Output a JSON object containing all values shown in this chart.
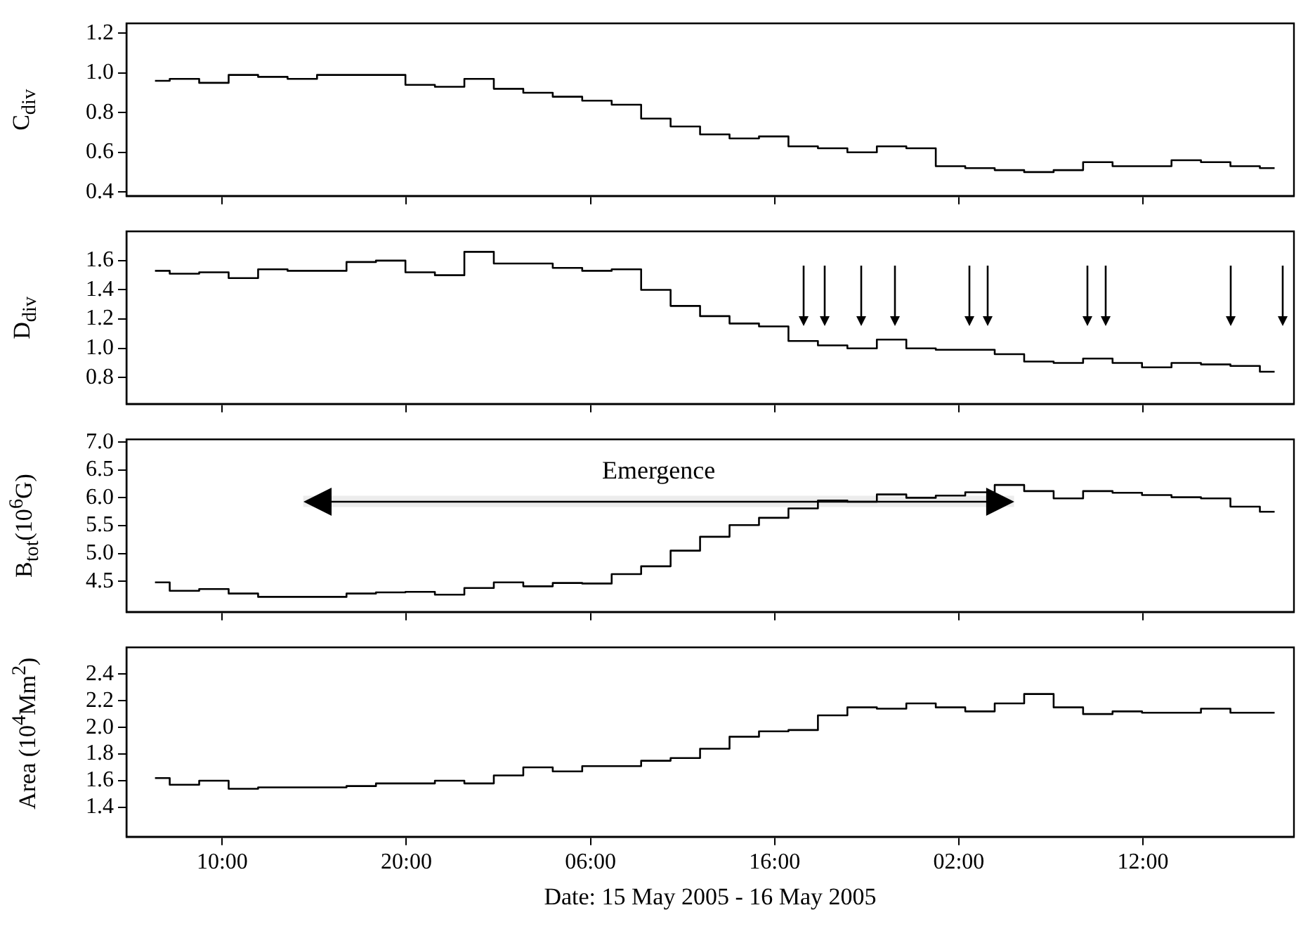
{
  "chart_data": [
    {
      "type": "step",
      "ylabel": "C$_{div}$",
      "x": [
        "2005-05-15T06:21",
        "2005-05-15T07:57",
        "2005-05-15T09:33",
        "2005-05-15T11:09",
        "2005-05-15T12:45",
        "2005-05-15T14:21",
        "2005-05-15T15:57",
        "2005-05-15T17:33",
        "2005-05-15T19:09",
        "2005-05-15T20:45",
        "2005-05-15T22:21",
        "2005-05-15T23:57",
        "2005-05-16T01:33",
        "2005-05-16T03:09",
        "2005-05-16T04:45",
        "2005-05-16T06:21",
        "2005-05-16T07:57",
        "2005-05-16T09:33",
        "2005-05-16T11:09",
        "2005-05-16T12:45",
        "2005-05-16T14:21",
        "2005-05-16T15:57",
        "2005-05-16T17:33",
        "2005-05-16T19:09",
        "2005-05-16T20:45",
        "2005-05-16T22:21",
        "2005-05-16T23:57",
        "2005-05-17T01:33",
        "2005-05-17T03:09",
        "2005-05-17T04:45",
        "2005-05-17T06:21",
        "2005-05-17T07:57",
        "2005-05-17T09:33",
        "2005-05-17T11:09",
        "2005-05-17T12:45",
        "2005-05-17T14:21",
        "2005-05-17T15:57",
        "2005-05-17T17:33",
        "2005-05-17T19:09"
      ],
      "values": [
        0.96,
        0.97,
        0.95,
        0.99,
        0.98,
        0.97,
        0.99,
        0.99,
        0.99,
        0.94,
        0.93,
        0.97,
        0.92,
        0.9,
        0.88,
        0.86,
        0.84,
        0.77,
        0.73,
        0.69,
        0.67,
        0.68,
        0.63,
        0.62,
        0.6,
        0.63,
        0.62,
        0.53,
        0.52,
        0.51,
        0.5,
        0.51,
        0.55,
        0.53,
        0.53,
        0.56,
        0.55,
        0.53,
        0.52
      ],
      "color": "#000000",
      "xlim": [
        "2005-05-15T04:48",
        "2005-05-17T20:12"
      ],
      "ylim": [
        0.38,
        1.25
      ],
      "xticks": [
        {
          "value": "2005-05-15T10:00",
          "label": null
        },
        {
          "value": "2005-05-15T20:00",
          "label": null
        },
        {
          "value": "2005-05-16T06:00",
          "label": null
        },
        {
          "value": "2005-05-16T16:00",
          "label": null
        },
        {
          "value": "2005-05-17T02:00",
          "label": null
        },
        {
          "value": "2005-05-17T12:00",
          "label": null
        }
      ],
      "yticks": [
        {
          "value": 0.4,
          "label": "0.4"
        },
        {
          "value": 0.6,
          "label": "0.6"
        },
        {
          "value": 0.8,
          "label": "0.8"
        },
        {
          "value": 1.0,
          "label": "1.0"
        },
        {
          "value": 1.2,
          "label": "1.2"
        }
      ],
      "tick_labels": "y",
      "marker": "none",
      "line_style": "solid"
    },
    {
      "type": "step",
      "ylabel": "D$_{div}$",
      "x": [
        "2005-05-15T06:21",
        "2005-05-15T07:57",
        "2005-05-15T09:33",
        "2005-05-15T11:09",
        "2005-05-15T12:45",
        "2005-05-15T14:21",
        "2005-05-15T15:57",
        "2005-05-15T17:33",
        "2005-05-15T19:09",
        "2005-05-15T20:45",
        "2005-05-15T22:21",
        "2005-05-15T23:57",
        "2005-05-16T01:33",
        "2005-05-16T03:09",
        "2005-05-16T04:45",
        "2005-05-16T06:21",
        "2005-05-16T07:57",
        "2005-05-16T09:33",
        "2005-05-16T11:09",
        "2005-05-16T12:45",
        "2005-05-16T14:21",
        "2005-05-16T15:57",
        "2005-05-16T17:33",
        "2005-05-16T19:09",
        "2005-05-16T20:45",
        "2005-05-16T22:21",
        "2005-05-16T23:57",
        "2005-05-17T01:33",
        "2005-05-17T03:09",
        "2005-05-17T04:45",
        "2005-05-17T06:21",
        "2005-05-17T07:57",
        "2005-05-17T09:33",
        "2005-05-17T11:09",
        "2005-05-17T12:45",
        "2005-05-17T14:21",
        "2005-05-17T15:57",
        "2005-05-17T17:33",
        "2005-05-17T19:09"
      ],
      "values": [
        1.53,
        1.51,
        1.52,
        1.48,
        1.54,
        1.53,
        1.53,
        1.59,
        1.6,
        1.52,
        1.5,
        1.66,
        1.58,
        1.58,
        1.55,
        1.53,
        1.54,
        1.4,
        1.29,
        1.22,
        1.17,
        1.15,
        1.05,
        1.02,
        1.0,
        1.06,
        1.0,
        0.99,
        0.99,
        0.96,
        0.91,
        0.9,
        0.93,
        0.9,
        0.87,
        0.9,
        0.89,
        0.88,
        0.84
      ],
      "color": "#000000",
      "xlim": [
        "2005-05-15T04:48",
        "2005-05-17T20:12"
      ],
      "ylim": [
        0.62,
        1.8
      ],
      "xticks": [
        {
          "value": "2005-05-15T10:00",
          "label": null
        },
        {
          "value": "2005-05-15T20:00",
          "label": null
        },
        {
          "value": "2005-05-16T06:00",
          "label": null
        },
        {
          "value": "2005-05-16T16:00",
          "label": null
        },
        {
          "value": "2005-05-17T02:00",
          "label": null
        },
        {
          "value": "2005-05-17T12:00",
          "label": null
        }
      ],
      "yticks": [
        {
          "value": 0.8,
          "label": "0.8"
        },
        {
          "value": 1.0,
          "label": "1.0"
        },
        {
          "value": 1.2,
          "label": "1.2"
        },
        {
          "value": 1.4,
          "label": "1.4"
        },
        {
          "value": 1.6,
          "label": "1.6"
        }
      ],
      "ref_lines": [
        {
          "axis": "x",
          "value": "2005-05-16T17:36"
        },
        {
          "axis": "x",
          "value": "2005-05-16T18:42"
        },
        {
          "axis": "x",
          "value": "2005-05-16T20:42"
        },
        {
          "axis": "x",
          "value": "2005-05-16T22:30"
        },
        {
          "axis": "x",
          "value": "2005-05-17T02:36"
        },
        {
          "axis": "x",
          "value": "2005-05-17T03:36"
        },
        {
          "axis": "x",
          "value": "2005-05-17T09:00"
        },
        {
          "axis": "x",
          "value": "2005-05-17T10:00"
        },
        {
          "axis": "x",
          "value": "2005-05-17T16:48"
        },
        {
          "axis": "x",
          "value": "2005-05-17T19:36"
        }
      ],
      "tick_labels": "y",
      "marker": "none",
      "line_style": "solid"
    },
    {
      "type": "step",
      "ylabel": "B$_{tot}$(10$^{6}$G)",
      "x": [
        "2005-05-15T06:21",
        "2005-05-15T07:57",
        "2005-05-15T09:33",
        "2005-05-15T11:09",
        "2005-05-15T12:45",
        "2005-05-15T14:21",
        "2005-05-15T15:57",
        "2005-05-15T17:33",
        "2005-05-15T19:09",
        "2005-05-15T20:45",
        "2005-05-15T22:21",
        "2005-05-15T23:57",
        "2005-05-16T01:33",
        "2005-05-16T03:09",
        "2005-05-16T04:45",
        "2005-05-16T06:21",
        "2005-05-16T07:57",
        "2005-05-16T09:33",
        "2005-05-16T11:09",
        "2005-05-16T12:45",
        "2005-05-16T14:21",
        "2005-05-16T15:57",
        "2005-05-16T17:33",
        "2005-05-16T19:09",
        "2005-05-16T20:45",
        "2005-05-16T22:21",
        "2005-05-16T23:57",
        "2005-05-17T01:33",
        "2005-05-17T03:09",
        "2005-05-17T04:45",
        "2005-05-17T06:21",
        "2005-05-17T07:57",
        "2005-05-17T09:33",
        "2005-05-17T11:09",
        "2005-05-17T12:45",
        "2005-05-17T14:21",
        "2005-05-17T15:57",
        "2005-05-17T17:33",
        "2005-05-17T19:09"
      ],
      "values": [
        4.48,
        4.33,
        4.36,
        4.28,
        4.22,
        4.22,
        4.22,
        4.28,
        4.3,
        4.31,
        4.26,
        4.38,
        4.48,
        4.41,
        4.47,
        4.46,
        4.63,
        4.77,
        5.05,
        5.3,
        5.51,
        5.64,
        5.81,
        5.95,
        5.93,
        6.06,
        6.0,
        6.04,
        6.1,
        6.23,
        6.12,
        5.99,
        6.12,
        6.09,
        6.05,
        6.01,
        5.99,
        5.84,
        5.75
      ],
      "color": "#000000",
      "xlim": [
        "2005-05-15T04:48",
        "2005-05-17T20:12"
      ],
      "ylim": [
        3.95,
        7.05
      ],
      "xticks": [
        {
          "value": "2005-05-15T10:00",
          "label": null
        },
        {
          "value": "2005-05-15T20:00",
          "label": null
        },
        {
          "value": "2005-05-16T06:00",
          "label": null
        },
        {
          "value": "2005-05-16T16:00",
          "label": null
        },
        {
          "value": "2005-05-17T02:00",
          "label": null
        },
        {
          "value": "2005-05-17T12:00",
          "label": null
        }
      ],
      "yticks": [
        {
          "value": 4.5,
          "label": "4.5"
        },
        {
          "value": 5.0,
          "label": "5.0"
        },
        {
          "value": 5.5,
          "label": "5.5"
        },
        {
          "value": 6.0,
          "label": "6.0"
        },
        {
          "value": 6.5,
          "label": "6.5"
        },
        {
          "value": 7.0,
          "label": "7.0"
        }
      ],
      "bands": [
        {
          "axis": "x",
          "from": "2005-05-15T14:24",
          "to": "2005-05-17T05:00",
          "label": "Emergence"
        }
      ],
      "tick_labels": "y",
      "marker": "none",
      "line_style": "solid"
    },
    {
      "type": "step",
      "ylabel": "Area (10$^{4}$Mm$^{2}$)",
      "xlabel": "Date: 15 May 2005 - 16 May 2005",
      "x": [
        "2005-05-15T06:21",
        "2005-05-15T07:57",
        "2005-05-15T09:33",
        "2005-05-15T11:09",
        "2005-05-15T12:45",
        "2005-05-15T14:21",
        "2005-05-15T15:57",
        "2005-05-15T17:33",
        "2005-05-15T19:09",
        "2005-05-15T20:45",
        "2005-05-15T22:21",
        "2005-05-15T23:57",
        "2005-05-16T01:33",
        "2005-05-16T03:09",
        "2005-05-16T04:45",
        "2005-05-16T06:21",
        "2005-05-16T07:57",
        "2005-05-16T09:33",
        "2005-05-16T11:09",
        "2005-05-16T12:45",
        "2005-05-16T14:21",
        "2005-05-16T15:57",
        "2005-05-16T17:33",
        "2005-05-16T19:09",
        "2005-05-16T20:45",
        "2005-05-16T22:21",
        "2005-05-16T23:57",
        "2005-05-17T01:33",
        "2005-05-17T03:09",
        "2005-05-17T04:45",
        "2005-05-17T06:21",
        "2005-05-17T07:57",
        "2005-05-17T09:33",
        "2005-05-17T11:09",
        "2005-05-17T12:45",
        "2005-05-17T14:21",
        "2005-05-17T15:57",
        "2005-05-17T17:33",
        "2005-05-17T19:09"
      ],
      "values": [
        1.62,
        1.57,
        1.6,
        1.54,
        1.55,
        1.55,
        1.55,
        1.56,
        1.58,
        1.58,
        1.6,
        1.58,
        1.64,
        1.7,
        1.67,
        1.71,
        1.71,
        1.75,
        1.77,
        1.84,
        1.93,
        1.97,
        1.98,
        2.09,
        2.15,
        2.14,
        2.18,
        2.15,
        2.12,
        2.18,
        2.25,
        2.15,
        2.1,
        2.12,
        2.11,
        2.11,
        2.14,
        2.11,
        2.11
      ],
      "color": "#000000",
      "xlim": [
        "2005-05-15T04:48",
        "2005-05-17T20:12"
      ],
      "ylim": [
        1.18,
        2.6
      ],
      "xticks": [
        {
          "value": "2005-05-15T10:00",
          "label": "10:00"
        },
        {
          "value": "2005-05-15T20:00",
          "label": "20:00"
        },
        {
          "value": "2005-05-16T06:00",
          "label": "06:00"
        },
        {
          "value": "2005-05-16T16:00",
          "label": "16:00"
        },
        {
          "value": "2005-05-17T02:00",
          "label": "02:00"
        },
        {
          "value": "2005-05-17T12:00",
          "label": "12:00"
        }
      ],
      "yticks": [
        {
          "value": 1.4,
          "label": "1.4"
        },
        {
          "value": 1.6,
          "label": "1.6"
        },
        {
          "value": 1.8,
          "label": "1.8"
        },
        {
          "value": 2.0,
          "label": "2.0"
        },
        {
          "value": 2.2,
          "label": "2.2"
        },
        {
          "value": 2.4,
          "label": "2.4"
        }
      ],
      "marker": "none",
      "line_style": "solid"
    }
  ]
}
